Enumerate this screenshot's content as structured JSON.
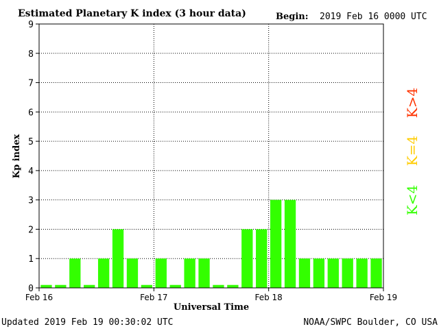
{
  "title": "Estimated Planetary K index (3 hour data)",
  "begin_label": "Begin:",
  "begin_value": "2019 Feb 16 0000 UTC",
  "updated": "Updated 2019 Feb 19 00:30:02 UTC",
  "source": "NOAA/SWPC Boulder, CO USA",
  "legend": [
    {
      "label": "K>4",
      "color": "#ff3300"
    },
    {
      "label": "K=4",
      "color": "#ffcc00"
    },
    {
      "label": "K<4",
      "color": "#33ff00"
    }
  ],
  "chart_data": {
    "type": "bar",
    "title": "Estimated Planetary K index (3 hour data)",
    "xlabel": "Universal Time",
    "ylabel": "Kp index",
    "ylim": [
      0,
      9
    ],
    "yticks": [
      0,
      1,
      2,
      3,
      4,
      5,
      6,
      7,
      8,
      9
    ],
    "day_labels": [
      "Feb 16",
      "Feb 17",
      "Feb 18",
      "Feb 19"
    ],
    "bar_color": "#33ff00",
    "grid": true,
    "values": [
      0.1,
      0.1,
      1,
      0.1,
      1,
      2,
      1,
      0.1,
      1,
      0.1,
      1,
      1,
      0.1,
      0.1,
      2,
      2,
      3,
      3,
      1,
      1,
      1,
      1,
      1,
      1
    ]
  }
}
